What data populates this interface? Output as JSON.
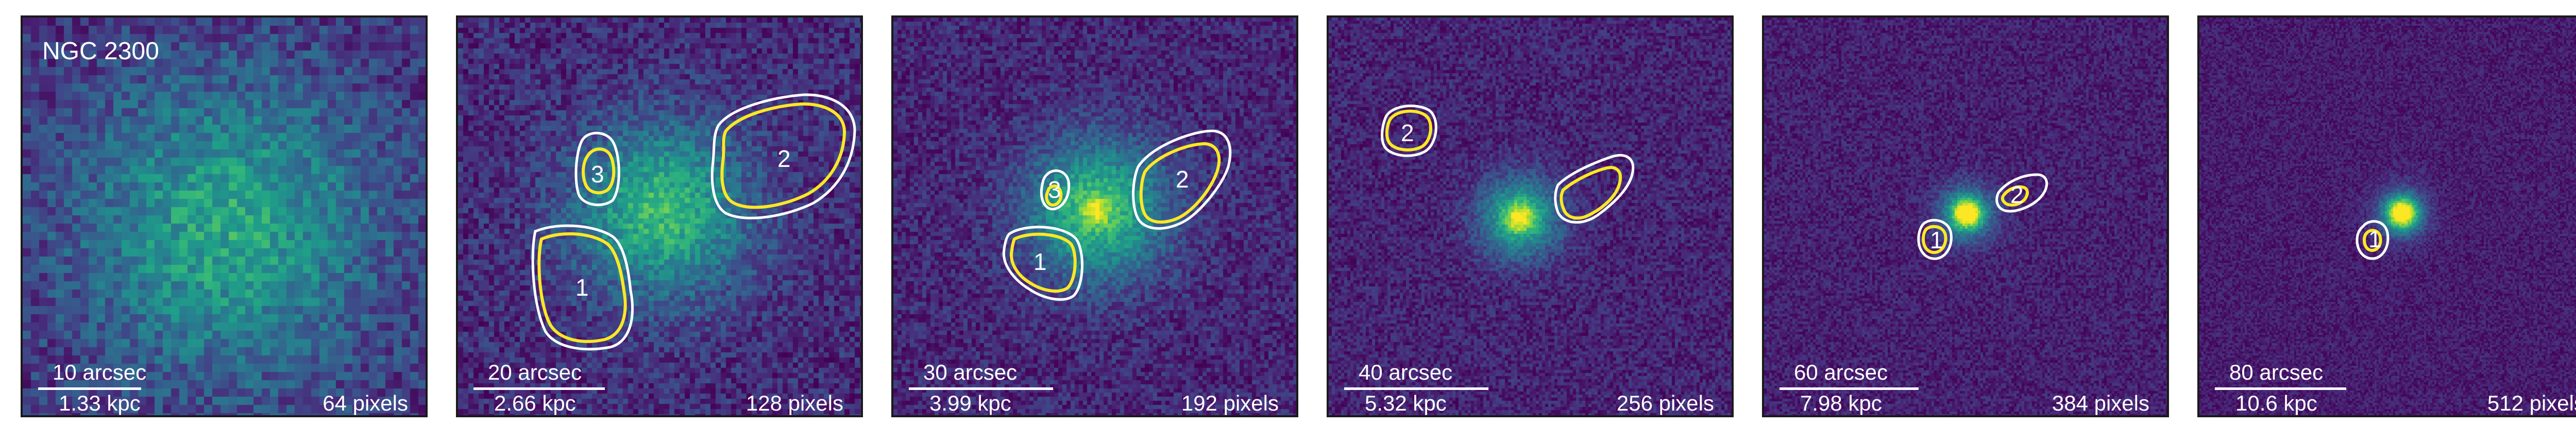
{
  "colors": {
    "background": "#440154",
    "white_contour": "#ffffff",
    "yellow_contour": "#fde725"
  },
  "galaxy_name": "NGC 2300",
  "panels": [
    {
      "id": "p1",
      "scale": "10 arcsec",
      "phys": "1.33 kpc",
      "pixels": "64 pixels",
      "regions": []
    },
    {
      "id": "p2",
      "scale": "20 arcsec",
      "phys": "2.66 kpc",
      "pixels": "128 pixels",
      "regions": [
        "1",
        "2",
        "3"
      ]
    },
    {
      "id": "p3",
      "scale": "30 arcsec",
      "phys": "3.99 kpc",
      "pixels": "192 pixels",
      "regions": [
        "1",
        "2",
        "3"
      ]
    },
    {
      "id": "p4",
      "scale": "40 arcsec",
      "phys": "5.32 kpc",
      "pixels": "256 pixels",
      "regions": [
        "2"
      ]
    },
    {
      "id": "p5",
      "scale": "60 arcsec",
      "phys": "7.98 kpc",
      "pixels": "384 pixels",
      "regions": [
        "1",
        "2"
      ]
    },
    {
      "id": "p6",
      "scale": "80 arcsec",
      "phys": "10.6 kpc",
      "pixels": "512 pixels",
      "regions": [
        "1"
      ]
    }
  ]
}
